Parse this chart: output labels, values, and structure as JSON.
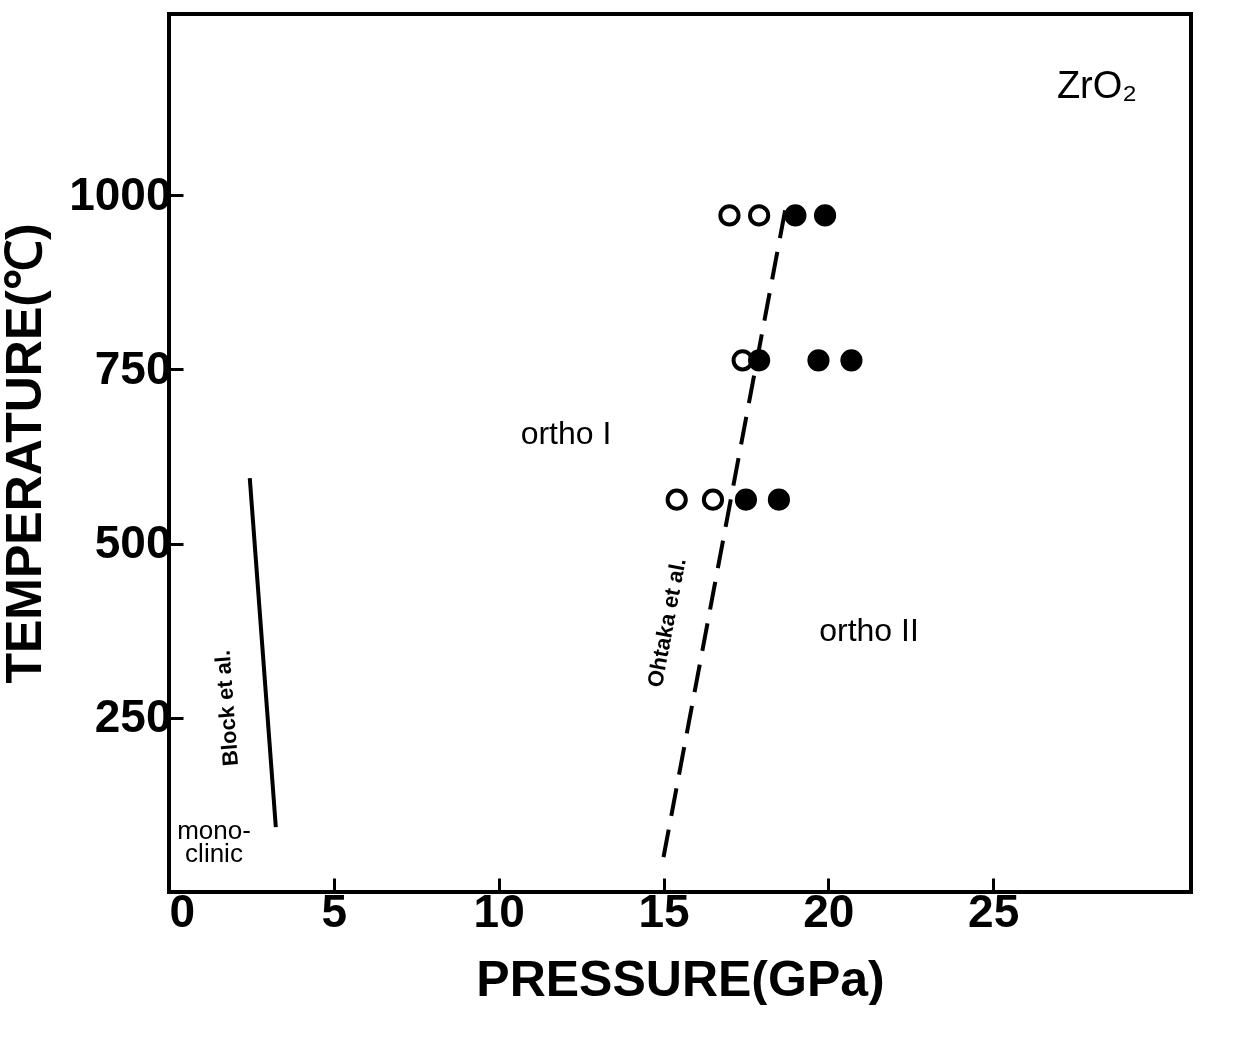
{
  "chart_data": {
    "type": "scatter",
    "xlabel": "PRESSURE(GPa)",
    "ylabel": "TEMPERATURE(℃)",
    "xlim": [
      0,
      31
    ],
    "ylim": [
      0,
      1260
    ],
    "xticks": [
      0,
      5,
      10,
      15,
      20,
      25
    ],
    "yticks": [
      250,
      500,
      750,
      1000
    ],
    "grid": false,
    "legend": false,
    "series": [
      {
        "type": "scatter",
        "marker": "circle",
        "color": "#ffffff",
        "x": [
          17.0,
          17.9,
          17.4,
          15.4,
          16.5
        ],
        "values": [
          971,
          971,
          763,
          563,
          563
        ]
      },
      {
        "type": "scatter",
        "marker": "circle",
        "color": "#000000",
        "x": [
          19.0,
          19.9,
          17.9,
          19.7,
          20.7,
          17.5,
          18.5
        ],
        "values": [
          971,
          971,
          763,
          763,
          763,
          563,
          563
        ]
      },
      {
        "type": "line",
        "name": "Ohtaka et al.",
        "line_style": "dashed",
        "marker": "none",
        "color": "#000000",
        "x": [
          15.0,
          18.7
        ],
        "values": [
          50,
          981
        ]
      },
      {
        "type": "line",
        "name": "Block et al.",
        "line_style": "solid",
        "marker": "none",
        "color": "#000000",
        "x": [
          2.45,
          3.24
        ],
        "values": [
          594,
          93
        ]
      }
    ],
    "annotations": [
      "ZrO₂",
      "ortho I",
      "ortho II",
      "mono-\nclinic"
    ]
  }
}
